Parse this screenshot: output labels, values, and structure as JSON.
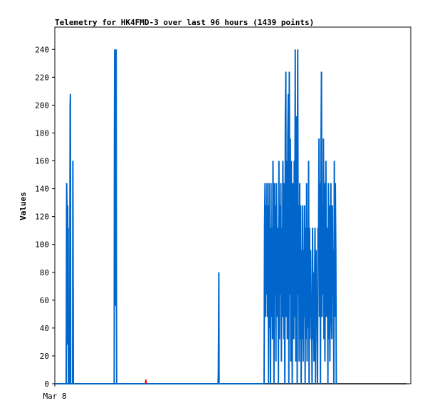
{
  "chart_data": {
    "type": "line",
    "title": "Telemetry for HK4FMD-3 over last 96 hours (1439 points)",
    "ylabel": "Values",
    "xlabel": "",
    "x_tick_labels": [
      "Mar 8"
    ],
    "y_ticks": [
      0,
      20,
      40,
      60,
      80,
      100,
      120,
      140,
      160,
      180,
      200,
      220,
      240
    ],
    "xlim": [
      0,
      1439
    ],
    "ylim": [
      0,
      256
    ],
    "grid": false,
    "legend": "none",
    "series": [
      {
        "color": "#0066cc",
        "points": [
          [
            0,
            0
          ],
          [
            46,
            0
          ],
          [
            47,
            72
          ],
          [
            48,
            144
          ],
          [
            49,
            128
          ],
          [
            50,
            28
          ],
          [
            51,
            84
          ],
          [
            52,
            128
          ],
          [
            53,
            56
          ],
          [
            54,
            112
          ],
          [
            55,
            0
          ],
          [
            60,
            0
          ],
          [
            61,
            120
          ],
          [
            62,
            200
          ],
          [
            63,
            208
          ],
          [
            64,
            0
          ],
          [
            72,
            0
          ],
          [
            73,
            160
          ],
          [
            74,
            80
          ],
          [
            75,
            0
          ],
          [
            240,
            0
          ],
          [
            241,
            176
          ],
          [
            242,
            240
          ],
          [
            243,
            168
          ],
          [
            244,
            224
          ],
          [
            245,
            56
          ],
          [
            246,
            224
          ],
          [
            247,
            208
          ],
          [
            248,
            240
          ],
          [
            249,
            80
          ],
          [
            250,
            0
          ],
          [
            660,
            0
          ],
          [
            661,
            8
          ],
          [
            662,
            40
          ],
          [
            663,
            80
          ],
          [
            664,
            0
          ],
          [
            846,
            0
          ],
          [
            848,
            112
          ],
          [
            850,
            144
          ],
          [
            852,
            48
          ],
          [
            854,
            128
          ],
          [
            856,
            64
          ],
          [
            858,
            144
          ],
          [
            860,
            48
          ],
          [
            862,
            128
          ],
          [
            864,
            0
          ],
          [
            866,
            144
          ],
          [
            868,
            40
          ],
          [
            870,
            112
          ],
          [
            872,
            0
          ],
          [
            874,
            144
          ],
          [
            876,
            48
          ],
          [
            878,
            112
          ],
          [
            880,
            32
          ],
          [
            882,
            160
          ],
          [
            884,
            96
          ],
          [
            886,
            0
          ],
          [
            888,
            144
          ],
          [
            890,
            64
          ],
          [
            892,
            128
          ],
          [
            894,
            16
          ],
          [
            896,
            144
          ],
          [
            898,
            80
          ],
          [
            900,
            48
          ],
          [
            902,
            112
          ],
          [
            904,
            0
          ],
          [
            906,
            160
          ],
          [
            908,
            32
          ],
          [
            910,
            128
          ],
          [
            912,
            64
          ],
          [
            914,
            144
          ],
          [
            916,
            16
          ],
          [
            918,
            112
          ],
          [
            920,
            48
          ],
          [
            922,
            160
          ],
          [
            924,
            96
          ],
          [
            926,
            32
          ],
          [
            928,
            144
          ],
          [
            930,
            0
          ],
          [
            932,
            192
          ],
          [
            934,
            224
          ],
          [
            936,
            48
          ],
          [
            938,
            160
          ],
          [
            940,
            32
          ],
          [
            942,
            176
          ],
          [
            944,
            208
          ],
          [
            946,
            0
          ],
          [
            948,
            224
          ],
          [
            950,
            64
          ],
          [
            952,
            176
          ],
          [
            954,
            16
          ],
          [
            956,
            160
          ],
          [
            958,
            80
          ],
          [
            960,
            0
          ],
          [
            962,
            144
          ],
          [
            964,
            112
          ],
          [
            966,
            32
          ],
          [
            968,
            160
          ],
          [
            970,
            48
          ],
          [
            972,
            240
          ],
          [
            974,
            16
          ],
          [
            976,
            144
          ],
          [
            978,
            192
          ],
          [
            980,
            0
          ],
          [
            982,
            240
          ],
          [
            984,
            64
          ],
          [
            986,
            128
          ],
          [
            988,
            16
          ],
          [
            990,
            144
          ],
          [
            992,
            32
          ],
          [
            994,
            128
          ],
          [
            996,
            0
          ],
          [
            998,
            96
          ],
          [
            1000,
            32
          ],
          [
            1002,
            128
          ],
          [
            1004,
            16
          ],
          [
            1006,
            96
          ],
          [
            1008,
            48
          ],
          [
            1010,
            128
          ],
          [
            1012,
            0
          ],
          [
            1014,
            112
          ],
          [
            1016,
            32
          ],
          [
            1018,
            144
          ],
          [
            1020,
            16
          ],
          [
            1022,
            112
          ],
          [
            1024,
            40
          ],
          [
            1026,
            160
          ],
          [
            1028,
            0
          ],
          [
            1030,
            112
          ],
          [
            1032,
            32
          ],
          [
            1034,
            96
          ],
          [
            1036,
            48
          ],
          [
            1038,
            64
          ],
          [
            1040,
            0
          ],
          [
            1042,
            112
          ],
          [
            1044,
            32
          ],
          [
            1046,
            80
          ],
          [
            1048,
            16
          ],
          [
            1050,
            64
          ],
          [
            1052,
            112
          ],
          [
            1054,
            0
          ],
          [
            1056,
            96
          ],
          [
            1058,
            48
          ],
          [
            1060,
            64
          ],
          [
            1062,
            0
          ],
          [
            1064,
            112
          ],
          [
            1066,
            96
          ],
          [
            1068,
            176
          ],
          [
            1070,
            48
          ],
          [
            1072,
            144
          ],
          [
            1074,
            0
          ],
          [
            1076,
            160
          ],
          [
            1078,
            224
          ],
          [
            1080,
            48
          ],
          [
            1082,
            128
          ],
          [
            1084,
            64
          ],
          [
            1086,
            176
          ],
          [
            1088,
            32
          ],
          [
            1090,
            144
          ],
          [
            1092,
            16
          ],
          [
            1094,
            96
          ],
          [
            1096,
            160
          ],
          [
            1098,
            48
          ],
          [
            1100,
            64
          ],
          [
            1102,
            112
          ],
          [
            1104,
            0
          ],
          [
            1106,
            144
          ],
          [
            1108,
            32
          ],
          [
            1110,
            128
          ],
          [
            1112,
            16
          ],
          [
            1114,
            96
          ],
          [
            1116,
            144
          ],
          [
            1118,
            48
          ],
          [
            1120,
            32
          ],
          [
            1122,
            128
          ],
          [
            1124,
            64
          ],
          [
            1126,
            96
          ],
          [
            1128,
            0
          ],
          [
            1130,
            160
          ],
          [
            1132,
            48
          ],
          [
            1134,
            144
          ],
          [
            1136,
            96
          ],
          [
            1138,
            0
          ]
        ]
      },
      {
        "color": "#ff0000",
        "points": [
          [
            367,
            0
          ],
          [
            368,
            3
          ],
          [
            369,
            0
          ]
        ]
      }
    ]
  }
}
